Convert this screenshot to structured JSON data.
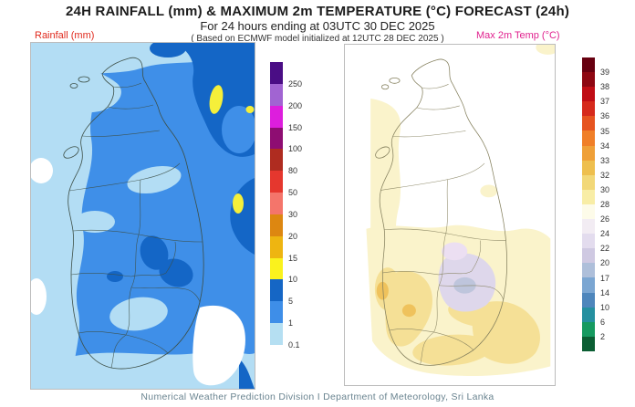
{
  "header": {
    "title": "24H RAINFALL (mm) & MAXIMUM 2m TEMPERATURE (°C) FORECAST (24h)",
    "subtitle": "For 24 hours ending at 03UTC 30 DEC 2025",
    "model_note": "( Based on ECMWF model initialized at 12UTC 28 DEC 2025 )"
  },
  "rainfall_panel": {
    "label": "Rainfall (mm)",
    "label_color": "#e02a1e",
    "legend": {
      "unit": "mm",
      "labels": [
        "250",
        "200",
        "150",
        "100",
        "80",
        "50",
        "30",
        "20",
        "15",
        "10",
        "5",
        "1",
        "0.1"
      ],
      "colors_top_to_bottom": [
        "#4a0d85",
        "#a164d2",
        "#dd1edd",
        "#8e0d72",
        "#af2c20",
        "#e5372e",
        "#f4756b",
        "#dd8711",
        "#eeb511",
        "#faf21d",
        "#1566c5",
        "#3e8ee8",
        "#b5dff2"
      ]
    }
  },
  "temperature_panel": {
    "label": "Max 2m Temp  (°C)",
    "label_color": "#e0218e",
    "legend": {
      "unit": "°C",
      "labels": [
        "39",
        "38",
        "37",
        "36",
        "35",
        "34",
        "33",
        "32",
        "30",
        "28",
        "26",
        "24",
        "22",
        "20",
        "17",
        "14",
        "10",
        "6",
        "2"
      ],
      "colors_top_to_bottom": [
        "#670010",
        "#8e0712",
        "#c00d15",
        "#d62a1c",
        "#e65420",
        "#f07f28",
        "#efa038",
        "#eebf4e",
        "#f2d878",
        "#f8eda6",
        "#fdfbe9",
        "#f2ecf3",
        "#e3dcee",
        "#cfc9e2",
        "#aebfda",
        "#7ba6d2",
        "#4e86bc",
        "#2590a0",
        "#169a60",
        "#0b5e33"
      ]
    }
  },
  "footer": {
    "text": "Numerical Weather Prediction Division I Department of Meteorology, Sri Lanka"
  }
}
